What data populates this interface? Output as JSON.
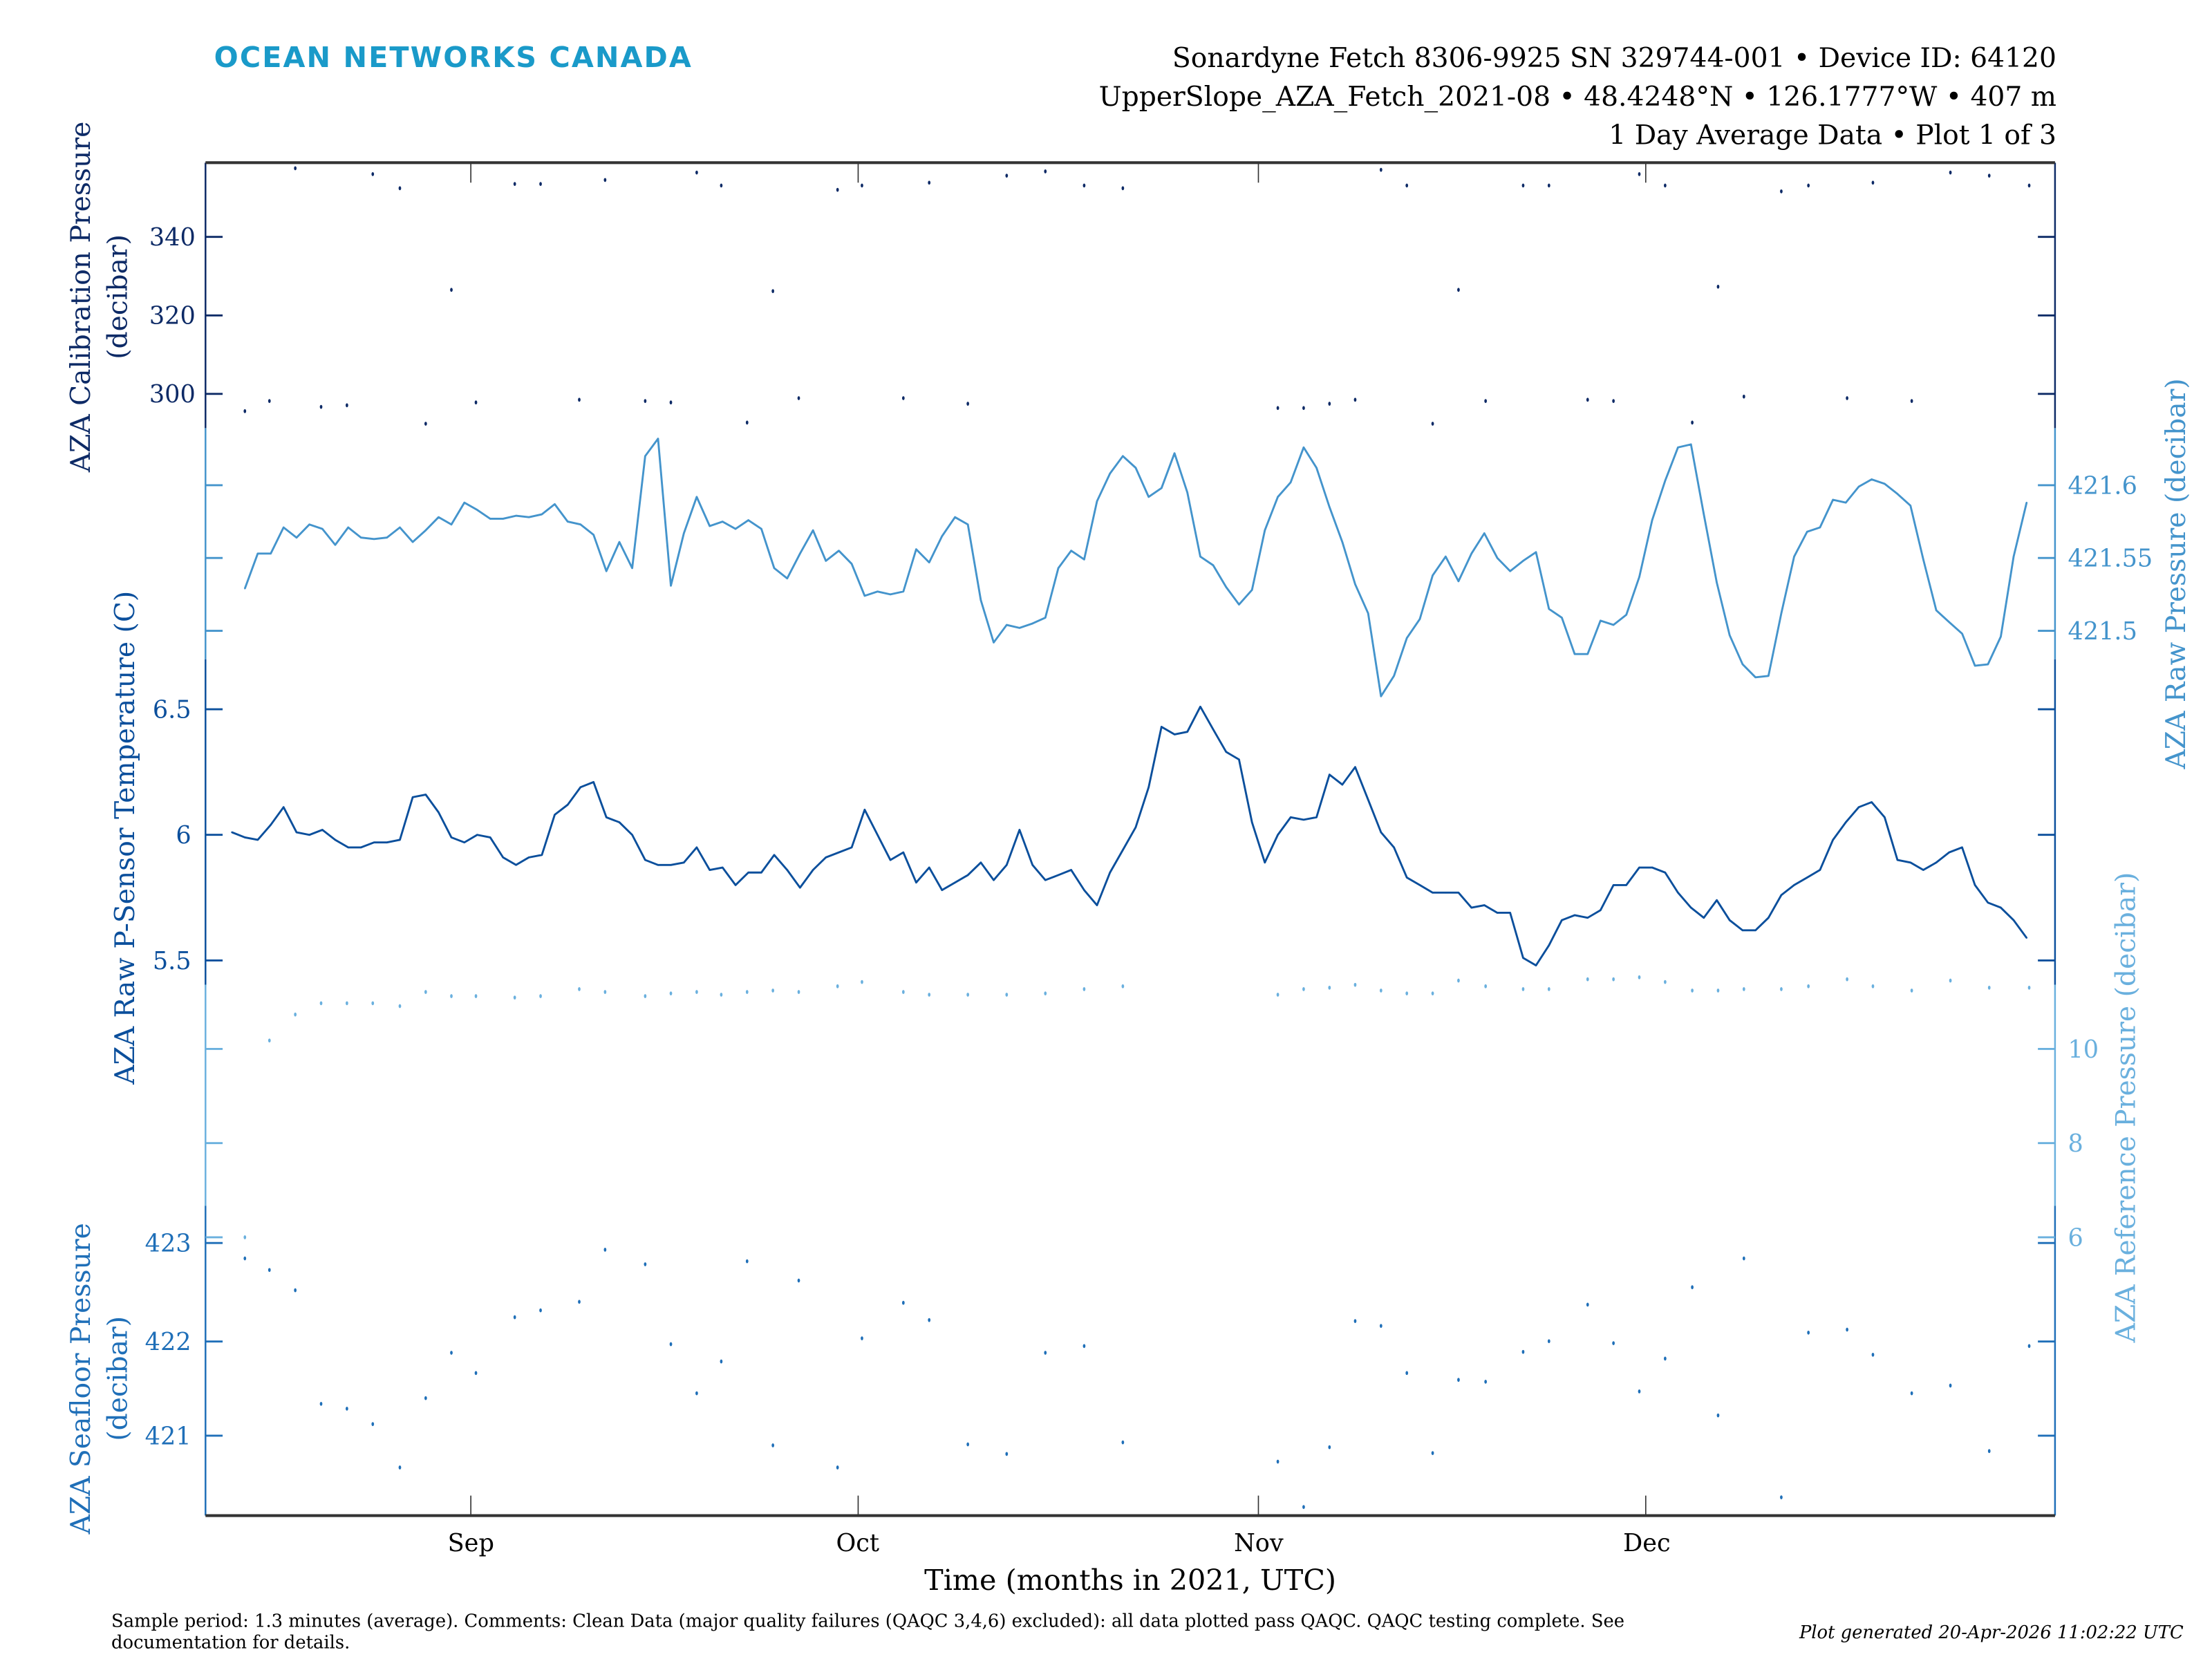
{
  "header": {
    "brand": "OCEAN NETWORKS CANADA",
    "line1": "Sonardyne Fetch 8306-9925 SN 329744-001 • Device ID: 64120",
    "line2": "UpperSlope_AZA_Fetch_2021-08 • 48.4248°N • 126.1777°W • 407 m",
    "line3": "1 Day Average Data • Plot 1 of 3"
  },
  "footer": {
    "comment_line1": "Sample period: 1.3 minutes (average). Comments: Clean Data (major quality failures (QAQC 3,4,6) excluded): all data plotted pass QAQC. QAQC testing complete. See",
    "comment_line2": "documentation for details.",
    "generated": "Plot generated 20-Apr-2026 11:02:22 UTC"
  },
  "colors": {
    "brand": "#1a9ac9",
    "calibration": "#0d2a66",
    "raw_pressure": "#4494cc",
    "temperature": "#0b4f9c",
    "reference": "#6ab0de",
    "seafloor": "#1f6fb8",
    "frame": "#333333"
  },
  "chart_data": {
    "type": "line",
    "title": "1 Day Average Data",
    "xlabel": "Time (months in 2021, UTC)",
    "x_units": "days since 2021-08-01",
    "xlim": [
      10.45,
      153.7
    ],
    "x_ticks": [
      {
        "label": "Sep",
        "day": 31
      },
      {
        "label": "Oct",
        "day": 61
      },
      {
        "label": "Nov",
        "day": 92
      },
      {
        "label": "Dec",
        "day": 122
      }
    ],
    "grid": false,
    "dot_days": [
      13.5,
      15.4,
      17.4,
      19.4,
      21.4,
      23.4,
      25.5,
      27.5,
      29.5,
      31.4,
      34.4,
      36.4,
      39.4,
      41.4,
      44.5,
      46.5,
      48.5,
      50.4,
      52.4,
      54.4,
      56.4,
      59.4,
      61.3,
      64.5,
      66.5,
      69.5,
      72.5,
      75.5,
      78.5,
      81.5,
      93.5,
      95.5,
      97.5,
      99.5,
      101.5,
      103.5,
      105.5,
      107.5,
      109.6,
      112.5,
      114.5,
      117.5,
      119.5,
      121.5,
      123.5,
      125.6,
      127.6,
      129.6,
      132.5,
      134.6,
      137.6,
      139.6,
      142.6,
      145.6,
      148.6,
      151.7
    ],
    "series": [
      {
        "key": "calibration",
        "name": "AZA Calibration Pressure",
        "ylabel_line1": "AZA Calibration Pressure",
        "ylabel_line2": "(decibar)",
        "axis": "left",
        "style": "dots",
        "ticks": [
          "300",
          "320",
          "340"
        ],
        "values": [
          295.6,
          298.2,
          357.5,
          296.7,
          297.1,
          356.0,
          352.4,
          292.4,
          326.5,
          297.8,
          353.5,
          353.5,
          298.5,
          354.5,
          298.2,
          297.8,
          356.4,
          353.1,
          292.7,
          326.2,
          298.9,
          352.0,
          353.1,
          298.9,
          353.8,
          297.5,
          355.6,
          356.7,
          353.1,
          352.4,
          296.4,
          296.4,
          297.5,
          298.5,
          357.1,
          353.1,
          292.4,
          326.5,
          298.2,
          353.1,
          353.1,
          298.5,
          298.2,
          356.0,
          353.1,
          292.7,
          327.3,
          299.3,
          351.6,
          353.1,
          298.9,
          353.8,
          298.2,
          356.4,
          355.6,
          353.1
        ]
      },
      {
        "key": "raw_pressure",
        "name": "AZA Raw Pressure",
        "ylabel_line1": "AZA Raw Pressure (decibar)",
        "axis": "right",
        "style": "line",
        "ticks": [
          "421.5",
          "421.55",
          "421.6"
        ],
        "start_day": 13.5,
        "step_days": 1,
        "values": [
          421.529,
          421.553,
          421.553,
          421.571,
          421.564,
          421.573,
          421.57,
          421.559,
          421.571,
          421.564,
          421.563,
          421.564,
          421.571,
          421.561,
          421.569,
          421.578,
          421.573,
          421.588,
          421.583,
          421.577,
          421.577,
          421.579,
          421.578,
          421.58,
          421.587,
          421.575,
          421.573,
          421.566,
          421.541,
          421.561,
          421.543,
          421.62,
          421.632,
          421.531,
          421.567,
          421.592,
          421.572,
          421.575,
          421.57,
          421.576,
          421.57,
          421.543,
          421.536,
          421.553,
          421.569,
          421.548,
          421.555,
          421.546,
          421.524,
          421.527,
          421.525,
          421.527,
          421.556,
          421.547,
          421.565,
          421.578,
          421.573,
          421.521,
          421.492,
          421.504,
          421.502,
          421.505,
          421.509,
          421.543,
          421.555,
          421.549,
          421.589,
          421.608,
          421.62,
          421.612,
          421.592,
          421.598,
          421.622,
          421.595,
          421.551,
          421.545,
          421.53,
          421.518,
          421.528,
          421.569,
          421.592,
          421.602,
          421.626,
          421.612,
          421.585,
          421.561,
          421.532,
          421.512,
          421.455,
          421.469,
          421.495,
          421.508,
          421.538,
          421.551,
          421.534,
          421.553,
          421.567,
          421.55,
          421.541,
          421.548,
          421.554,
          421.515,
          421.509,
          421.484,
          421.484,
          421.507,
          421.504,
          421.511,
          421.537,
          421.576,
          421.603,
          421.626,
          421.628,
          421.58,
          421.533,
          421.497,
          421.477,
          421.468,
          421.469,
          421.512,
          421.551,
          421.568,
          421.571,
          421.59,
          421.588,
          421.599,
          421.604,
          421.601,
          421.594,
          421.586,
          421.549,
          421.514,
          421.506,
          421.498,
          421.476,
          421.477,
          421.496,
          421.551,
          421.588
        ]
      },
      {
        "key": "temperature",
        "name": "AZA Raw P-Sensor Temperature",
        "ylabel_line1": "AZA Raw P-Sensor Temperature (C)",
        "axis": "left",
        "style": "line",
        "ticks": [
          "5.5",
          "6",
          "6.5"
        ],
        "start_day": 12.5,
        "step_days": 1,
        "values": [
          6.01,
          5.99,
          5.98,
          6.04,
          6.11,
          6.01,
          6.0,
          6.02,
          5.98,
          5.95,
          5.95,
          5.97,
          5.97,
          5.98,
          6.15,
          6.16,
          6.09,
          5.99,
          5.97,
          6.0,
          5.99,
          5.91,
          5.88,
          5.91,
          5.92,
          6.08,
          6.12,
          6.19,
          6.21,
          6.07,
          6.05,
          6.0,
          5.9,
          5.88,
          5.88,
          5.89,
          5.95,
          5.86,
          5.87,
          5.8,
          5.85,
          5.85,
          5.92,
          5.86,
          5.79,
          5.86,
          5.91,
          5.93,
          5.95,
          6.1,
          6.0,
          5.9,
          5.93,
          5.81,
          5.87,
          5.78,
          5.81,
          5.84,
          5.89,
          5.82,
          5.88,
          6.02,
          5.88,
          5.82,
          5.84,
          5.86,
          5.78,
          5.72,
          5.85,
          5.94,
          6.03,
          6.19,
          6.43,
          6.4,
          6.41,
          6.51,
          6.42,
          6.33,
          6.3,
          6.05,
          5.89,
          6.0,
          6.07,
          6.06,
          6.07,
          6.24,
          6.2,
          6.27,
          6.14,
          6.01,
          5.95,
          5.83,
          5.8,
          5.77,
          5.77,
          5.77,
          5.71,
          5.72,
          5.69,
          5.69,
          5.51,
          5.48,
          5.56,
          5.66,
          5.68,
          5.67,
          5.7,
          5.8,
          5.8,
          5.87,
          5.87,
          5.85,
          5.77,
          5.71,
          5.67,
          5.74,
          5.66,
          5.62,
          5.62,
          5.67,
          5.76,
          5.8,
          5.83,
          5.86,
          5.98,
          6.05,
          6.11,
          6.13,
          6.07,
          5.9,
          5.89,
          5.86,
          5.89,
          5.93,
          5.95,
          5.8,
          5.73,
          5.71,
          5.66,
          5.59
        ]
      },
      {
        "key": "reference",
        "name": "AZA Reference Pressure",
        "ylabel_line1": "AZA Reference Pressure (decibar)",
        "axis": "right",
        "style": "dots",
        "ticks": [
          "6",
          "8",
          "10"
        ],
        "values": [
          6.0,
          10.18,
          10.73,
          10.97,
          10.97,
          10.97,
          10.91,
          11.21,
          11.12,
          11.12,
          11.09,
          11.12,
          11.27,
          11.21,
          11.12,
          11.18,
          11.21,
          11.15,
          11.21,
          11.24,
          11.21,
          11.33,
          11.42,
          11.21,
          11.15,
          11.15,
          11.15,
          11.18,
          11.27,
          11.33,
          11.15,
          11.27,
          11.3,
          11.36,
          11.24,
          11.18,
          11.18,
          11.45,
          11.33,
          11.27,
          11.27,
          11.48,
          11.48,
          11.52,
          11.42,
          11.24,
          11.24,
          11.27,
          11.27,
          11.33,
          11.48,
          11.33,
          11.24,
          11.45,
          11.3,
          11.3
        ]
      },
      {
        "key": "seafloor",
        "name": "AZA Seafloor Pressure",
        "ylabel_line1": "AZA Seafloor Pressure",
        "ylabel_line2": "(decibar)",
        "axis": "left",
        "style": "dots",
        "ticks": [
          "421",
          "422",
          "423"
        ],
        "values": [
          422.84,
          422.72,
          422.51,
          421.33,
          421.28,
          421.12,
          420.67,
          421.39,
          421.86,
          421.65,
          422.23,
          422.3,
          422.39,
          422.93,
          422.78,
          421.95,
          421.44,
          421.77,
          422.81,
          420.9,
          422.61,
          420.67,
          422.01,
          422.38,
          422.2,
          420.91,
          420.81,
          421.86,
          421.93,
          420.93,
          420.73,
          420.26,
          420.88,
          422.19,
          422.14,
          421.65,
          420.82,
          421.58,
          421.56,
          421.87,
          421.98,
          422.36,
          421.96,
          421.46,
          421.8,
          422.54,
          421.21,
          422.84,
          420.36,
          422.07,
          422.1,
          421.84,
          421.44,
          421.52,
          420.84,
          421.93
        ]
      }
    ]
  }
}
